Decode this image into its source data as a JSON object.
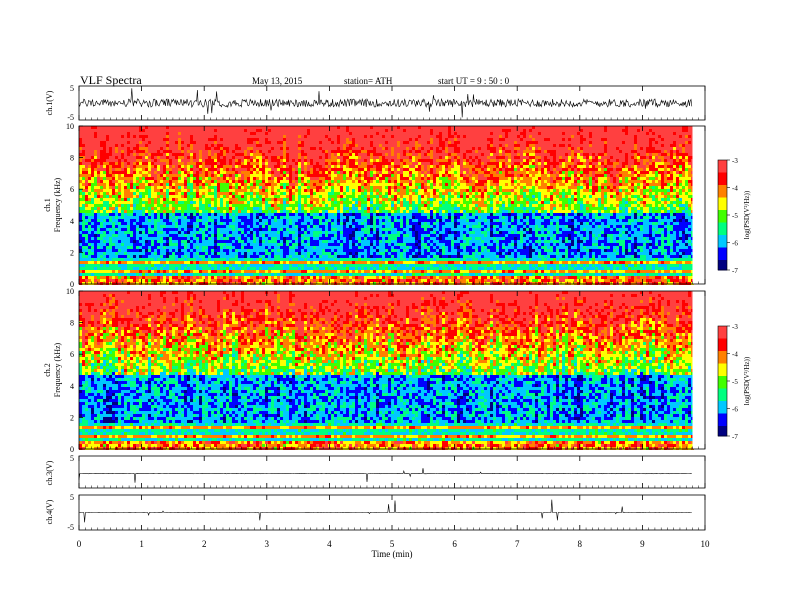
{
  "header": {
    "title": "VLF  Spectra",
    "date": "May 13, 2015",
    "station": "station= ATH",
    "start": "start  UT =   9  : 50 : 0"
  },
  "colors": {
    "colormap": [
      "#000080",
      "#0000ff",
      "#00c8ff",
      "#00ff80",
      "#40ff00",
      "#ffff00",
      "#ff8000",
      "#ff0000",
      "#ff4040",
      "#ffffff"
    ],
    "trace": "#000000",
    "frame": "#000000"
  },
  "chart_data": [
    {
      "type": "line",
      "name": "ch1-waveform",
      "ylabel": "ch.1(V)",
      "ylim": [
        -5,
        5
      ],
      "yticks": [
        "5",
        "-5"
      ],
      "xlim": [
        0,
        10
      ],
      "baseline": 0,
      "noise_amplitude": 1.2,
      "data_end_min": 9.8
    },
    {
      "type": "heatmap",
      "name": "ch1-spectrogram",
      "ylabel": "ch.1\nFrequency  (kHz)",
      "ylim": [
        0,
        10
      ],
      "yticks": [
        "0",
        "2",
        "4",
        "6",
        "8",
        "10"
      ],
      "xlim": [
        0,
        10
      ],
      "data_end_min": 9.8,
      "colorbar": {
        "label": "log(PSD(V²/Hz))",
        "range": [
          -7,
          -3
        ],
        "ticks": [
          "-3",
          "-4",
          "-5",
          "-6",
          "-7"
        ]
      }
    },
    {
      "type": "heatmap",
      "name": "ch2-spectrogram",
      "ylabel": "ch.2\nFrequency  (kHz)",
      "ylim": [
        0,
        10
      ],
      "yticks": [
        "0",
        "2",
        "4",
        "6",
        "8",
        "10"
      ],
      "xlim": [
        0,
        10
      ],
      "data_end_min": 9.8,
      "colorbar": {
        "label": "log(PSD(V²/Hz))",
        "range": [
          -7,
          -3
        ],
        "ticks": [
          "-3",
          "-4",
          "-5",
          "-6",
          "-7"
        ]
      }
    },
    {
      "type": "line",
      "name": "ch3-waveform",
      "ylabel": "ch.3(V)",
      "ylim": [
        -5,
        5
      ],
      "yticks": [
        "5"
      ],
      "xlim": [
        0,
        10
      ],
      "baseline": -0.5,
      "noise_amplitude": 0.05,
      "data_end_min": 9.8
    },
    {
      "type": "line",
      "name": "ch4-waveform",
      "ylabel": "ch.4(V)",
      "ylim": [
        -5,
        5
      ],
      "yticks": [
        "5",
        "-5"
      ],
      "xlim": [
        0,
        10
      ],
      "baseline": 0,
      "noise_amplitude": 0.02,
      "data_end_min": 9.8
    }
  ],
  "xaxis": {
    "label": "Time  (min)",
    "ticks": [
      "0",
      "1",
      "2",
      "3",
      "4",
      "5",
      "6",
      "7",
      "8",
      "9",
      "10"
    ],
    "range": [
      0,
      10
    ]
  }
}
